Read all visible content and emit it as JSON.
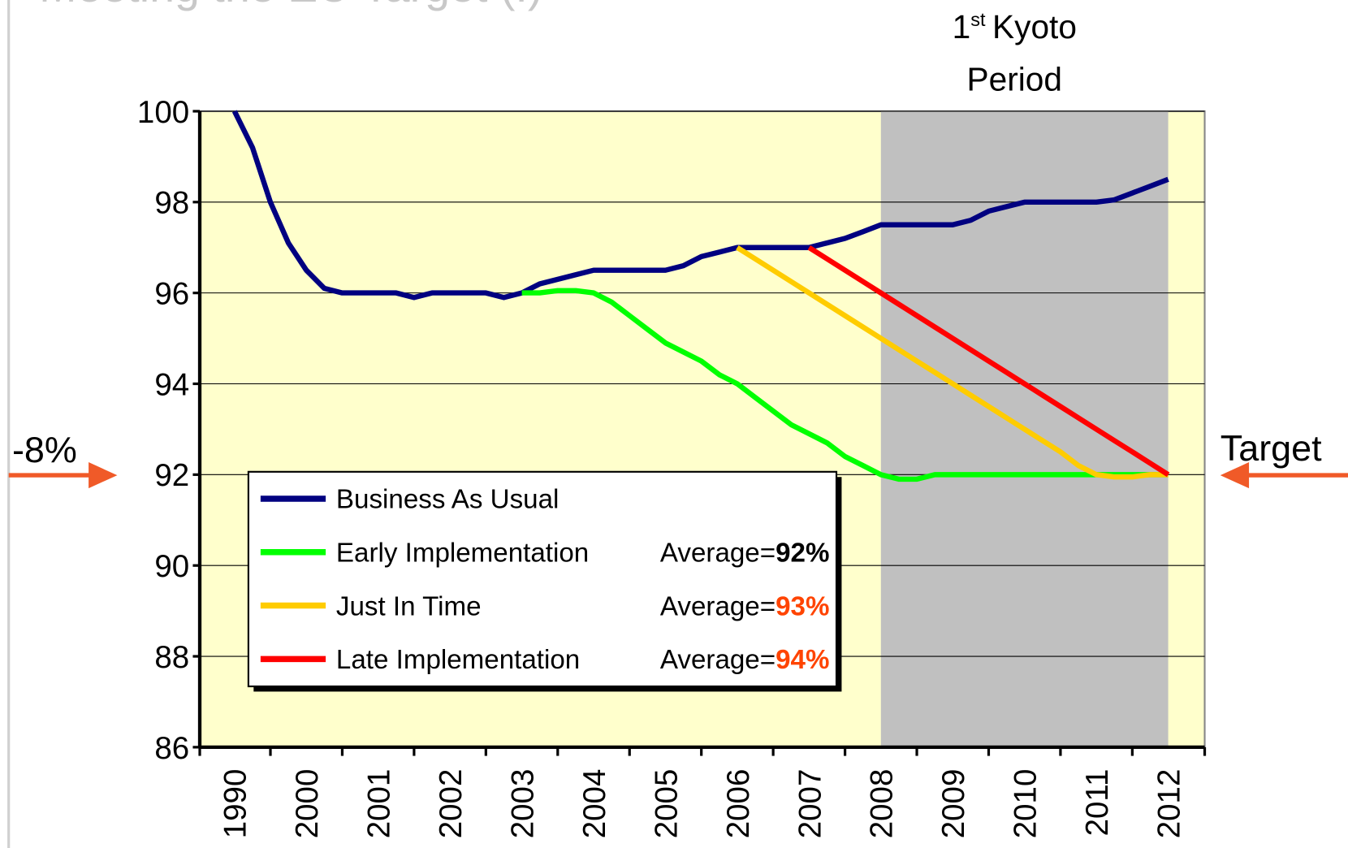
{
  "title": "Meeting the EU Target (I)",
  "annotations": {
    "period_prefix": "1",
    "period_sup": "st",
    "period_word": "Kyoto",
    "period_line2": "Period",
    "left": "-8%",
    "right": "Target"
  },
  "chart_data": {
    "type": "line",
    "categories": [
      "1990",
      null,
      null,
      null,
      "2000",
      null,
      null,
      null,
      "2001",
      null,
      null,
      null,
      "2002",
      null,
      null,
      null,
      "2003",
      null,
      null,
      null,
      "2004",
      null,
      null,
      null,
      "2005",
      null,
      null,
      null,
      "2006",
      null,
      null,
      null,
      "2007",
      null,
      null,
      null,
      "2008",
      null,
      null,
      null,
      "2009",
      null,
      null,
      null,
      "2010",
      null,
      null,
      null,
      "2011",
      null,
      null,
      null,
      "2012"
    ],
    "shaded_range": [
      "2008",
      "2012"
    ],
    "shade_color": "#c0c0c0",
    "plot_color": "#ffffcc",
    "ylim": [
      86,
      100
    ],
    "yticks": [
      86,
      88,
      90,
      92,
      94,
      96,
      98,
      100
    ],
    "grid": true,
    "series": [
      {
        "name": "Business As Usual",
        "color": "#000080",
        "values": [
          100,
          99.2,
          98,
          97.1,
          96.5,
          96.1,
          96,
          96,
          96,
          96,
          95.9,
          96,
          96,
          96,
          96,
          95.9,
          96,
          96.2,
          96.3,
          96.4,
          96.5,
          96.5,
          96.5,
          96.5,
          96.5,
          96.6,
          96.8,
          96.9,
          97,
          97,
          97,
          97,
          97,
          97.1,
          97.2,
          97.35,
          97.5,
          97.5,
          97.5,
          97.5,
          97.5,
          97.6,
          97.8,
          97.9,
          98,
          98,
          98,
          98,
          98,
          98.05,
          98.2,
          98.35,
          98.5
        ]
      },
      {
        "name": "Early Implementation",
        "color": "#00ff00",
        "average_label": "Average=",
        "average": "92%",
        "average_color": "#000000",
        "values": [
          null,
          null,
          null,
          null,
          null,
          null,
          null,
          null,
          null,
          null,
          null,
          null,
          null,
          null,
          null,
          null,
          96,
          96,
          96.05,
          96.05,
          96,
          95.8,
          95.5,
          95.2,
          94.9,
          94.7,
          94.5,
          94.2,
          94,
          93.7,
          93.4,
          93.1,
          92.9,
          92.7,
          92.4,
          92.2,
          92,
          91.9,
          91.9,
          92,
          92,
          92,
          92,
          92,
          92,
          92,
          92,
          92,
          92,
          92,
          92,
          92,
          92
        ]
      },
      {
        "name": "Just In Time",
        "color": "#ffcc00",
        "average_label": "Average=",
        "average": "93%",
        "average_color": "#ff4400",
        "values": [
          null,
          null,
          null,
          null,
          null,
          null,
          null,
          null,
          null,
          null,
          null,
          null,
          null,
          null,
          null,
          null,
          null,
          null,
          null,
          null,
          null,
          null,
          null,
          null,
          null,
          null,
          null,
          null,
          97,
          96.75,
          96.5,
          96.25,
          96,
          95.75,
          95.5,
          95.25,
          95,
          94.75,
          94.5,
          94.25,
          94,
          93.75,
          93.5,
          93.25,
          93,
          92.75,
          92.5,
          92.2,
          92,
          91.95,
          91.95,
          92,
          92
        ]
      },
      {
        "name": "Late Implementation",
        "color": "#ff0000",
        "average_label": "Average=",
        "average": "94%",
        "average_color": "#ff4400",
        "values": [
          null,
          null,
          null,
          null,
          null,
          null,
          null,
          null,
          null,
          null,
          null,
          null,
          null,
          null,
          null,
          null,
          null,
          null,
          null,
          null,
          null,
          null,
          null,
          null,
          null,
          null,
          null,
          null,
          null,
          null,
          null,
          null,
          97,
          96.75,
          96.5,
          96.25,
          96,
          95.75,
          95.5,
          95.25,
          95,
          94.75,
          94.5,
          94.25,
          94,
          93.75,
          93.5,
          93.25,
          93,
          92.75,
          92.5,
          92.25,
          92
        ]
      }
    ]
  }
}
